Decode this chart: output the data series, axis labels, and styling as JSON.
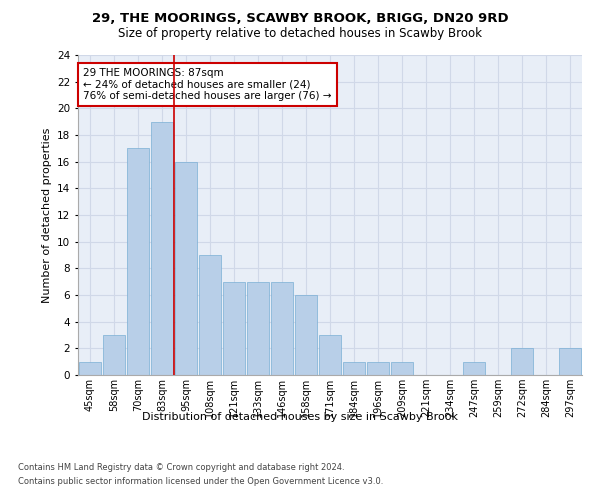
{
  "title1": "29, THE MOORINGS, SCAWBY BROOK, BRIGG, DN20 9RD",
  "title2": "Size of property relative to detached houses in Scawby Brook",
  "xlabel": "Distribution of detached houses by size in Scawby Brook",
  "ylabel": "Number of detached properties",
  "categories": [
    "45sqm",
    "58sqm",
    "70sqm",
    "83sqm",
    "95sqm",
    "108sqm",
    "121sqm",
    "133sqm",
    "146sqm",
    "158sqm",
    "171sqm",
    "184sqm",
    "196sqm",
    "209sqm",
    "221sqm",
    "234sqm",
    "247sqm",
    "259sqm",
    "272sqm",
    "284sqm",
    "297sqm"
  ],
  "values": [
    1,
    3,
    17,
    19,
    16,
    9,
    7,
    7,
    7,
    6,
    3,
    1,
    1,
    1,
    0,
    0,
    1,
    0,
    2,
    0,
    2
  ],
  "bar_color": "#b8cfe8",
  "bar_edge_color": "#7aafd4",
  "vline_color": "#cc0000",
  "vline_x": 3.5,
  "annotation_text": "29 THE MOORINGS: 87sqm\n← 24% of detached houses are smaller (24)\n76% of semi-detached houses are larger (76) →",
  "annotation_box_color": "#ffffff",
  "annotation_box_edge_color": "#cc0000",
  "ylim": [
    0,
    24
  ],
  "yticks": [
    0,
    2,
    4,
    6,
    8,
    10,
    12,
    14,
    16,
    18,
    20,
    22,
    24
  ],
  "grid_color": "#d0d8e8",
  "background_color": "#e8eef7",
  "footer_line1": "Contains HM Land Registry data © Crown copyright and database right 2024.",
  "footer_line2": "Contains public sector information licensed under the Open Government Licence v3.0."
}
